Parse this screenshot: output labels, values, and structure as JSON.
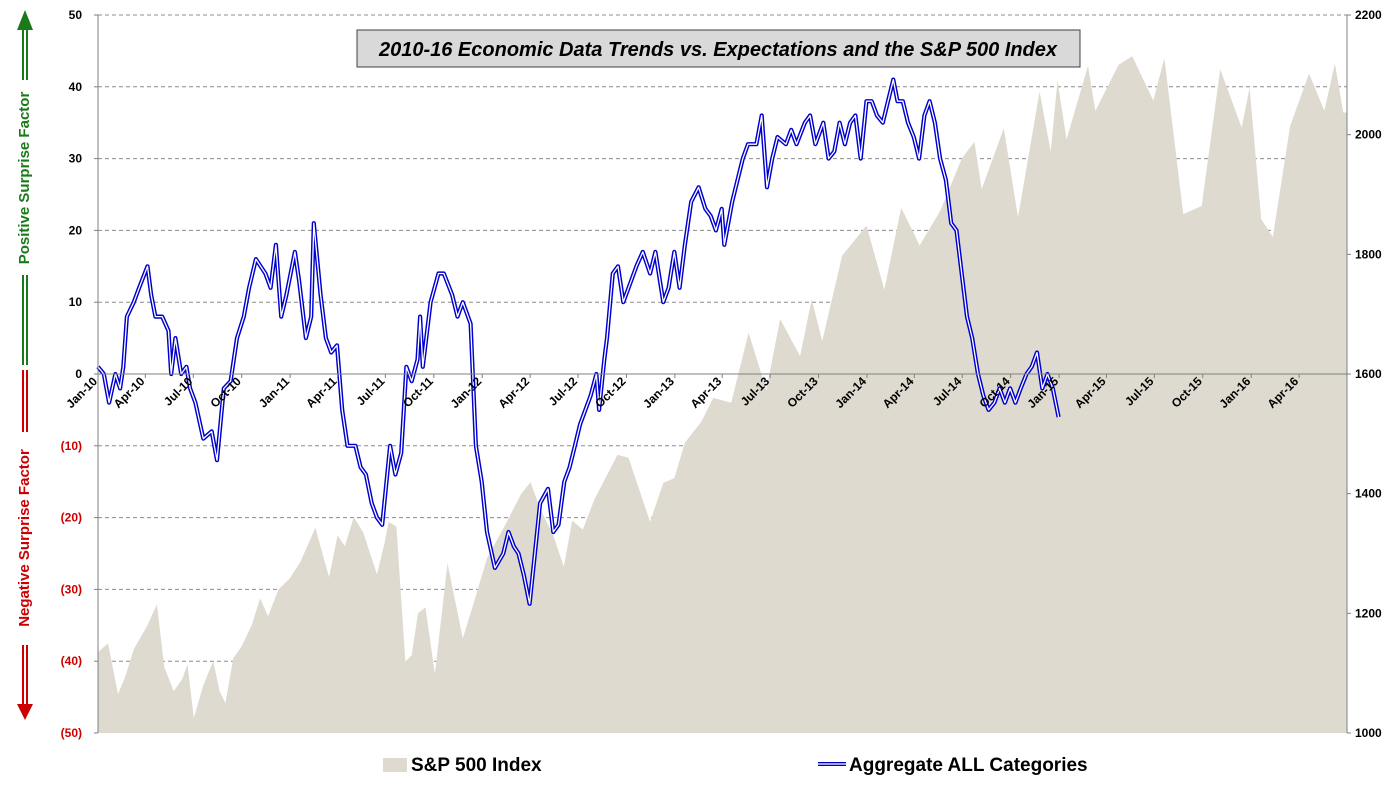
{
  "chart_data": {
    "type": "line",
    "title": "2010-16 Economic Data Trends vs. Expectations and the S&P 500 Index",
    "left_axis": {
      "ylim": [
        -50,
        50
      ],
      "tick_labels": [
        "50",
        "40",
        "30",
        "20",
        "10",
        "0",
        "(10)",
        "(20)",
        "(30)",
        "(40)",
        "(50)"
      ],
      "positive_label": "Positive Surprise Factor",
      "negative_label": "Negative Surprise Factor",
      "positive_color": "#1a7a1a",
      "negative_color": "#cc0000"
    },
    "right_axis": {
      "ylim": [
        1000,
        2200
      ],
      "tick_labels": [
        "2200",
        "2000",
        "1800",
        "1600",
        "1400",
        "1200",
        "1000"
      ]
    },
    "x_axis": {
      "tick_labels": [
        "Jan-10",
        "Apr-10",
        "Jul-10",
        "Oct-10",
        "Jan-11",
        "Apr-11",
        "Jul-11",
        "Oct-11",
        "Jan-12",
        "Apr-12",
        "Jul-12",
        "Oct-12",
        "Jan-13",
        "Apr-13",
        "Jul-13",
        "Oct-13",
        "Jan-14",
        "Apr-14",
        "Jul-14",
        "Oct-14",
        "Jan-15",
        "Apr-15",
        "Jul-15",
        "Oct-15",
        "Jan-16",
        "Apr-16"
      ]
    },
    "grid": "horizontal dashed",
    "legend_position": "bottom",
    "series": [
      {
        "name": "S&P 500 Index",
        "type": "area",
        "axis": "right",
        "color": "#dedad0",
        "points": [
          [
            "2010-01",
            1135
          ],
          [
            "2010-01-20",
            1150
          ],
          [
            "2010-02-08",
            1065
          ],
          [
            "2010-02-22",
            1095
          ],
          [
            "2010-03-10",
            1140
          ],
          [
            "2010-04-05",
            1180
          ],
          [
            "2010-04-23",
            1215
          ],
          [
            "2010-05-07",
            1110
          ],
          [
            "2010-05-25",
            1070
          ],
          [
            "2010-06-10",
            1090
          ],
          [
            "2010-06-20",
            1115
          ],
          [
            "2010-07-02",
            1025
          ],
          [
            "2010-07-20",
            1080
          ],
          [
            "2010-08-08",
            1120
          ],
          [
            "2010-08-20",
            1070
          ],
          [
            "2010-08-31",
            1050
          ],
          [
            "2010-09-15",
            1125
          ],
          [
            "2010-10-01",
            1145
          ],
          [
            "2010-10-20",
            1180
          ],
          [
            "2010-11-05",
            1225
          ],
          [
            "2010-11-20",
            1195
          ],
          [
            "2010-12-10",
            1240
          ],
          [
            "2010-12-31",
            1258
          ],
          [
            "2011-01-20",
            1285
          ],
          [
            "2011-02-18",
            1343
          ],
          [
            "2011-03-16",
            1260
          ],
          [
            "2011-04-01",
            1330
          ],
          [
            "2011-04-15",
            1312
          ],
          [
            "2011-05-02",
            1361
          ],
          [
            "2011-05-20",
            1335
          ],
          [
            "2011-06-15",
            1265
          ],
          [
            "2011-06-30",
            1320
          ],
          [
            "2011-07-07",
            1353
          ],
          [
            "2011-07-22",
            1345
          ],
          [
            "2011-08-08",
            1119
          ],
          [
            "2011-08-20",
            1130
          ],
          [
            "2011-09-01",
            1200
          ],
          [
            "2011-09-15",
            1210
          ],
          [
            "2011-10-03",
            1099
          ],
          [
            "2011-10-27",
            1284
          ],
          [
            "2011-11-25",
            1158
          ],
          [
            "2011-12-15",
            1215
          ],
          [
            "2012-01-10",
            1292
          ],
          [
            "2012-02-15",
            1350
          ],
          [
            "2012-03-15",
            1400
          ],
          [
            "2012-04-02",
            1419
          ],
          [
            "2012-04-20",
            1375
          ],
          [
            "2012-05-15",
            1330
          ],
          [
            "2012-06-04",
            1278
          ],
          [
            "2012-06-20",
            1355
          ],
          [
            "2012-07-10",
            1340
          ],
          [
            "2012-08-01",
            1390
          ],
          [
            "2012-09-14",
            1465
          ],
          [
            "2012-10-05",
            1460
          ],
          [
            "2012-11-15",
            1353
          ],
          [
            "2012-12-10",
            1418
          ],
          [
            "2012-12-31",
            1426
          ],
          [
            "2013-01-20",
            1485
          ],
          [
            "2013-02-20",
            1520
          ],
          [
            "2013-03-15",
            1560
          ],
          [
            "2013-04-18",
            1552
          ],
          [
            "2013-05-21",
            1669
          ],
          [
            "2013-06-24",
            1573
          ],
          [
            "2013-07-20",
            1692
          ],
          [
            "2013-08-27",
            1630
          ],
          [
            "2013-09-18",
            1725
          ],
          [
            "2013-10-08",
            1655
          ],
          [
            "2013-11-15",
            1798
          ],
          [
            "2013-12-31",
            1848
          ],
          [
            "2014-02-03",
            1741
          ],
          [
            "2014-03-07",
            1878
          ],
          [
            "2014-04-11",
            1815
          ],
          [
            "2014-05-20",
            1872
          ],
          [
            "2014-06-30",
            1960
          ],
          [
            "2014-07-24",
            1988
          ],
          [
            "2014-08-07",
            1909
          ],
          [
            "2014-09-18",
            2011
          ],
          [
            "2014-10-15",
            1862
          ],
          [
            "2014-11-25",
            2072
          ],
          [
            "2014-12-16",
            1972
          ],
          [
            "2014-12-29",
            2090
          ],
          [
            "2015-01-15",
            1992
          ],
          [
            "2015-02-25",
            2115
          ],
          [
            "2015-03-11",
            2040
          ],
          [
            "2015-04-24",
            2117
          ],
          [
            "2015-05-20",
            2131
          ],
          [
            "2015-06-29",
            2057
          ],
          [
            "2015-07-20",
            2128
          ],
          [
            "2015-08-25",
            1867
          ],
          [
            "2015-09-29",
            1881
          ],
          [
            "2015-11-03",
            2109
          ],
          [
            "2015-12-14",
            2012
          ],
          [
            "2015-12-29",
            2078
          ],
          [
            "2016-01-20",
            1859
          ],
          [
            "2016-02-11",
            1829
          ],
          [
            "2016-03-15",
            2015
          ],
          [
            "2016-04-20",
            2102
          ],
          [
            "2016-05-19",
            2040
          ],
          [
            "2016-06-08",
            2119
          ],
          [
            "2016-06-24",
            2037
          ]
        ]
      },
      {
        "name": "Aggregate ALL Categories",
        "type": "line",
        "axis": "left",
        "color": "#0000cc",
        "points": [
          [
            "2010-01",
            1
          ],
          [
            "2010-01-12",
            0
          ],
          [
            "2010-01-22",
            -4
          ],
          [
            "2010-02-03",
            0
          ],
          [
            "2010-02-12",
            -2
          ],
          [
            "2010-02-18",
            1
          ],
          [
            "2010-02-25",
            8
          ],
          [
            "2010-03-10",
            10
          ],
          [
            "2010-03-20",
            12
          ],
          [
            "2010-04-05",
            15
          ],
          [
            "2010-04-12",
            11
          ],
          [
            "2010-04-20",
            8
          ],
          [
            "2010-05-03",
            8
          ],
          [
            "2010-05-15",
            6
          ],
          [
            "2010-05-20",
            0
          ],
          [
            "2010-05-28",
            5
          ],
          [
            "2010-06-08",
            0
          ],
          [
            "2010-06-18",
            1
          ],
          [
            "2010-06-25",
            -2
          ],
          [
            "2010-07-05",
            -4
          ],
          [
            "2010-07-20",
            -9
          ],
          [
            "2010-08-05",
            -8
          ],
          [
            "2010-08-15",
            -12
          ],
          [
            "2010-08-28",
            -2
          ],
          [
            "2010-09-10",
            -1
          ],
          [
            "2010-09-22",
            5
          ],
          [
            "2010-10-05",
            8
          ],
          [
            "2010-10-15",
            12
          ],
          [
            "2010-10-28",
            16
          ],
          [
            "2010-11-15",
            14
          ],
          [
            "2010-11-25",
            12
          ],
          [
            "2010-12-05",
            18
          ],
          [
            "2010-12-15",
            8
          ],
          [
            "2010-12-25",
            11
          ],
          [
            "2011-01-10",
            17
          ],
          [
            "2011-01-18",
            13
          ],
          [
            "2011-01-31",
            5
          ],
          [
            "2011-02-10",
            8
          ],
          [
            "2011-02-15",
            21
          ],
          [
            "2011-02-28",
            11
          ],
          [
            "2011-03-10",
            5
          ],
          [
            "2011-03-20",
            3
          ],
          [
            "2011-03-31",
            4
          ],
          [
            "2011-04-10",
            -5
          ],
          [
            "2011-04-20",
            -10
          ],
          [
            "2011-05-05",
            -10
          ],
          [
            "2011-05-15",
            -13
          ],
          [
            "2011-05-25",
            -14
          ],
          [
            "2011-06-05",
            -18
          ],
          [
            "2011-06-15",
            -20
          ],
          [
            "2011-06-25",
            -21
          ],
          [
            "2011-07-10",
            -10
          ],
          [
            "2011-07-20",
            -14
          ],
          [
            "2011-07-31",
            -11
          ],
          [
            "2011-08-10",
            1
          ],
          [
            "2011-08-20",
            -1
          ],
          [
            "2011-08-31",
            2
          ],
          [
            "2011-09-05",
            8
          ],
          [
            "2011-09-10",
            1
          ],
          [
            "2011-09-25",
            10
          ],
          [
            "2011-10-10",
            14
          ],
          [
            "2011-10-20",
            14
          ],
          [
            "2011-11-05",
            11
          ],
          [
            "2011-11-15",
            8
          ],
          [
            "2011-11-25",
            10
          ],
          [
            "2011-12-10",
            7
          ],
          [
            "2011-12-20",
            -10
          ],
          [
            "2011-12-31",
            -15
          ],
          [
            "2012-01-10",
            -22
          ],
          [
            "2012-01-25",
            -27
          ],
          [
            "2012-02-10",
            -25
          ],
          [
            "2012-02-20",
            -22
          ],
          [
            "2012-03-01",
            -24
          ],
          [
            "2012-03-10",
            -25
          ],
          [
            "2012-03-20",
            -28
          ],
          [
            "2012-03-31",
            -32
          ],
          [
            "2012-04-10",
            -25
          ],
          [
            "2012-04-20",
            -18
          ],
          [
            "2012-05-05",
            -16
          ],
          [
            "2012-05-15",
            -22
          ],
          [
            "2012-05-25",
            -21
          ],
          [
            "2012-06-05",
            -15
          ],
          [
            "2012-06-15",
            -13
          ],
          [
            "2012-06-25",
            -10
          ],
          [
            "2012-07-05",
            -7
          ],
          [
            "2012-07-15",
            -5
          ],
          [
            "2012-07-25",
            -3
          ],
          [
            "2012-08-05",
            0
          ],
          [
            "2012-08-10",
            -5
          ],
          [
            "2012-08-20",
            2
          ],
          [
            "2012-08-25",
            5
          ],
          [
            "2012-09-05",
            14
          ],
          [
            "2012-09-15",
            15
          ],
          [
            "2012-09-25",
            10
          ],
          [
            "2012-10-10",
            13
          ],
          [
            "2012-10-20",
            15
          ],
          [
            "2012-11-01",
            17
          ],
          [
            "2012-11-15",
            14
          ],
          [
            "2012-11-25",
            17
          ],
          [
            "2012-12-10",
            10
          ],
          [
            "2012-12-20",
            12
          ],
          [
            "2012-12-31",
            17
          ],
          [
            "2013-01-10",
            12
          ],
          [
            "2013-01-20",
            18
          ],
          [
            "2013-02-01",
            24
          ],
          [
            "2013-02-15",
            26
          ],
          [
            "2013-02-28",
            23
          ],
          [
            "2013-03-10",
            22
          ],
          [
            "2013-03-20",
            20
          ],
          [
            "2013-03-31",
            23
          ],
          [
            "2013-04-05",
            18
          ],
          [
            "2013-04-20",
            24
          ],
          [
            "2013-05-10",
            30
          ],
          [
            "2013-05-20",
            32
          ],
          [
            "2013-06-05",
            32
          ],
          [
            "2013-06-15",
            36
          ],
          [
            "2013-06-25",
            26
          ],
          [
            "2013-07-05",
            30
          ],
          [
            "2013-07-15",
            33
          ],
          [
            "2013-07-31",
            32
          ],
          [
            "2013-08-10",
            34
          ],
          [
            "2013-08-20",
            32
          ],
          [
            "2013-09-05",
            35
          ],
          [
            "2013-09-15",
            36
          ],
          [
            "2013-09-25",
            32
          ],
          [
            "2013-10-10",
            35
          ],
          [
            "2013-10-20",
            30
          ],
          [
            "2013-10-31",
            31
          ],
          [
            "2013-11-10",
            35
          ],
          [
            "2013-11-20",
            32
          ],
          [
            "2013-11-30",
            35
          ],
          [
            "2013-12-10",
            36
          ],
          [
            "2013-12-20",
            30
          ],
          [
            "2013-12-31",
            38
          ],
          [
            "2014-01-10",
            38
          ],
          [
            "2014-01-20",
            36
          ],
          [
            "2014-01-31",
            35
          ],
          [
            "2014-02-10",
            38
          ],
          [
            "2014-02-20",
            41
          ],
          [
            "2014-02-28",
            38
          ],
          [
            "2014-03-10",
            38
          ],
          [
            "2014-03-20",
            35
          ],
          [
            "2014-03-31",
            33
          ],
          [
            "2014-04-10",
            30
          ],
          [
            "2014-04-20",
            36
          ],
          [
            "2014-04-30",
            38
          ],
          [
            "2014-05-10",
            35
          ],
          [
            "2014-05-20",
            30
          ],
          [
            "2014-05-31",
            27
          ],
          [
            "2014-06-10",
            21
          ],
          [
            "2014-06-20",
            20
          ],
          [
            "2014-06-30",
            14
          ],
          [
            "2014-07-10",
            8
          ],
          [
            "2014-07-20",
            5
          ],
          [
            "2014-07-31",
            0
          ],
          [
            "2014-08-10",
            -3
          ],
          [
            "2014-08-20",
            -5
          ],
          [
            "2014-08-31",
            -4
          ],
          [
            "2014-09-10",
            -2
          ],
          [
            "2014-09-20",
            -4
          ],
          [
            "2014-09-30",
            -2
          ],
          [
            "2014-10-10",
            -4
          ],
          [
            "2014-10-20",
            -2
          ],
          [
            "2014-10-31",
            0
          ],
          [
            "2014-11-10",
            1
          ],
          [
            "2014-11-20",
            3
          ],
          [
            "2014-11-30",
            -2
          ],
          [
            "2014-12-10",
            0
          ],
          [
            "2014-12-20",
            -2
          ],
          [
            "2014-12-31",
            -6
          ]
        ]
      }
    ]
  },
  "legend": {
    "sp500_label": "S&P 500 Index",
    "aggregate_label": "Aggregate ALL Categories"
  }
}
